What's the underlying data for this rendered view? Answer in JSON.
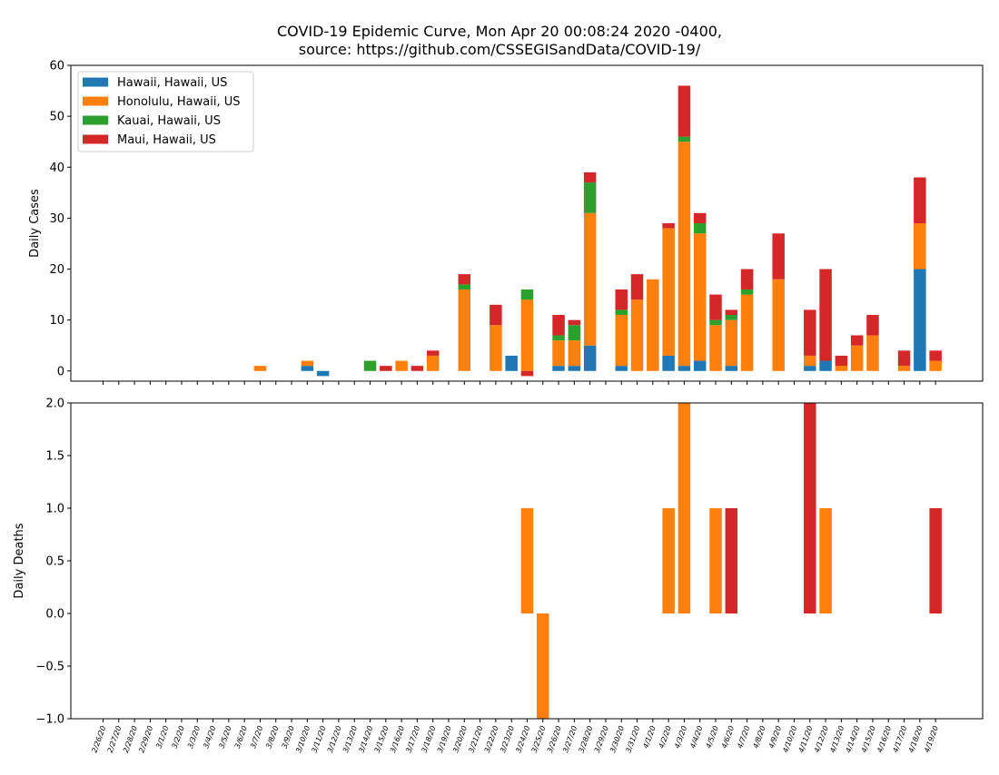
{
  "title_line1": "COVID-19 Epidemic Curve, Mon Apr 20 00:08:24 2020 -0400,",
  "title_line2": "source: https://github.com/CSSEGISandData/COVID-19/",
  "chart_data": [
    {
      "type": "bar",
      "stacked": true,
      "ylabel": "Daily Cases",
      "ylim": [
        -2,
        60
      ],
      "yticks": [
        0,
        10,
        20,
        30,
        40,
        50,
        60
      ],
      "legend": "top-left",
      "categories": [
        "2/26/20",
        "2/27/20",
        "2/28/20",
        "2/29/20",
        "3/1/20",
        "3/2/20",
        "3/3/20",
        "3/4/20",
        "3/5/20",
        "3/6/20",
        "3/7/20",
        "3/8/20",
        "3/9/20",
        "3/10/20",
        "3/11/20",
        "3/12/20",
        "3/13/20",
        "3/14/20",
        "3/15/20",
        "3/16/20",
        "3/17/20",
        "3/18/20",
        "3/19/20",
        "3/20/20",
        "3/21/20",
        "3/22/20",
        "3/23/20",
        "3/24/20",
        "3/25/20",
        "3/26/20",
        "3/27/20",
        "3/28/20",
        "3/29/20",
        "3/30/20",
        "3/31/20",
        "4/1/20",
        "4/2/20",
        "4/3/20",
        "4/4/20",
        "4/5/20",
        "4/6/20",
        "4/7/20",
        "4/8/20",
        "4/9/20",
        "4/10/20",
        "4/11/20",
        "4/12/20",
        "4/13/20",
        "4/14/20",
        "4/15/20",
        "4/16/20",
        "4/17/20",
        "4/18/20",
        "4/19/20"
      ],
      "series": [
        {
          "name": "Hawaii, Hawaii, US",
          "color": "#1f77b4",
          "values": [
            0,
            0,
            0,
            0,
            0,
            0,
            0,
            0,
            0,
            0,
            0,
            0,
            0,
            1,
            -1,
            0,
            0,
            0,
            0,
            0,
            0,
            0,
            0,
            0,
            0,
            0,
            3,
            0,
            0,
            1,
            1,
            5,
            0,
            1,
            0,
            0,
            3,
            1,
            2,
            0,
            1,
            0,
            0,
            0,
            0,
            1,
            2,
            0,
            0,
            0,
            0,
            0,
            20,
            0
          ]
        },
        {
          "name": "Honolulu, Hawaii, US",
          "color": "#ff7f0e",
          "values": [
            0,
            0,
            0,
            0,
            0,
            0,
            0,
            0,
            0,
            0,
            1,
            0,
            0,
            1,
            0,
            0,
            0,
            0,
            0,
            2,
            0,
            3,
            0,
            16,
            0,
            9,
            0,
            14,
            0,
            5,
            5,
            26,
            0,
            10,
            14,
            18,
            25,
            44,
            25,
            9,
            9,
            15,
            0,
            18,
            0,
            2,
            0,
            1,
            5,
            7,
            0,
            1,
            9,
            2
          ]
        },
        {
          "name": "Kauai, Hawaii, US",
          "color": "#2ca02c",
          "values": [
            0,
            0,
            0,
            0,
            0,
            0,
            0,
            0,
            0,
            0,
            0,
            0,
            0,
            0,
            0,
            0,
            0,
            2,
            0,
            0,
            0,
            0,
            0,
            1,
            0,
            0,
            0,
            2,
            0,
            1,
            3,
            6,
            0,
            1,
            0,
            0,
            0,
            1,
            2,
            1,
            1,
            1,
            0,
            0,
            0,
            0,
            0,
            0,
            0,
            0,
            0,
            0,
            0,
            0
          ]
        },
        {
          "name": "Maui, Hawaii, US",
          "color": "#d62728",
          "values": [
            0,
            0,
            0,
            0,
            0,
            0,
            0,
            0,
            0,
            0,
            0,
            0,
            0,
            0,
            0,
            0,
            0,
            0,
            1,
            0,
            1,
            1,
            0,
            2,
            0,
            4,
            0,
            -1,
            0,
            4,
            1,
            2,
            0,
            4,
            5,
            0,
            1,
            10,
            2,
            5,
            1,
            4,
            0,
            9,
            0,
            9,
            18,
            2,
            2,
            4,
            0,
            3,
            9,
            2
          ]
        }
      ]
    },
    {
      "type": "bar",
      "stacked": true,
      "ylabel": "Daily Deaths",
      "ylim": [
        -1,
        2
      ],
      "yticks": [
        -1.0,
        -0.5,
        0.0,
        0.5,
        1.0,
        1.5,
        2.0
      ],
      "categories_shared_with_above": true,
      "series": [
        {
          "name": "Hawaii, Hawaii, US",
          "color": "#1f77b4",
          "values": [
            0,
            0,
            0,
            0,
            0,
            0,
            0,
            0,
            0,
            0,
            0,
            0,
            0,
            0,
            0,
            0,
            0,
            0,
            0,
            0,
            0,
            0,
            0,
            0,
            0,
            0,
            0,
            0,
            0,
            0,
            0,
            0,
            0,
            0,
            0,
            0,
            0,
            0,
            0,
            0,
            0,
            0,
            0,
            0,
            0,
            0,
            0,
            0,
            0,
            0,
            0,
            0,
            0,
            0
          ]
        },
        {
          "name": "Honolulu, Hawaii, US",
          "color": "#ff7f0e",
          "values": [
            0,
            0,
            0,
            0,
            0,
            0,
            0,
            0,
            0,
            0,
            0,
            0,
            0,
            0,
            0,
            0,
            0,
            0,
            0,
            0,
            0,
            0,
            0,
            0,
            0,
            0,
            0,
            1,
            -1,
            0,
            0,
            0,
            0,
            0,
            0,
            0,
            1,
            2,
            0,
            1,
            0,
            0,
            0,
            0,
            0,
            0,
            1,
            0,
            0,
            0,
            0,
            0,
            0,
            0
          ]
        },
        {
          "name": "Kauai, Hawaii, US",
          "color": "#2ca02c",
          "values": [
            0,
            0,
            0,
            0,
            0,
            0,
            0,
            0,
            0,
            0,
            0,
            0,
            0,
            0,
            0,
            0,
            0,
            0,
            0,
            0,
            0,
            0,
            0,
            0,
            0,
            0,
            0,
            0,
            0,
            0,
            0,
            0,
            0,
            0,
            0,
            0,
            0,
            0,
            0,
            0,
            0,
            0,
            0,
            0,
            0,
            0,
            0,
            0,
            0,
            0,
            0,
            0,
            0,
            0
          ]
        },
        {
          "name": "Maui, Hawaii, US",
          "color": "#d62728",
          "values": [
            0,
            0,
            0,
            0,
            0,
            0,
            0,
            0,
            0,
            0,
            0,
            0,
            0,
            0,
            0,
            0,
            0,
            0,
            0,
            0,
            0,
            0,
            0,
            0,
            0,
            0,
            0,
            0,
            0,
            0,
            0,
            0,
            0,
            0,
            0,
            0,
            0,
            0,
            0,
            0,
            1,
            0,
            0,
            0,
            0,
            2,
            0,
            0,
            0,
            0,
            0,
            0,
            0,
            1
          ]
        }
      ]
    }
  ]
}
